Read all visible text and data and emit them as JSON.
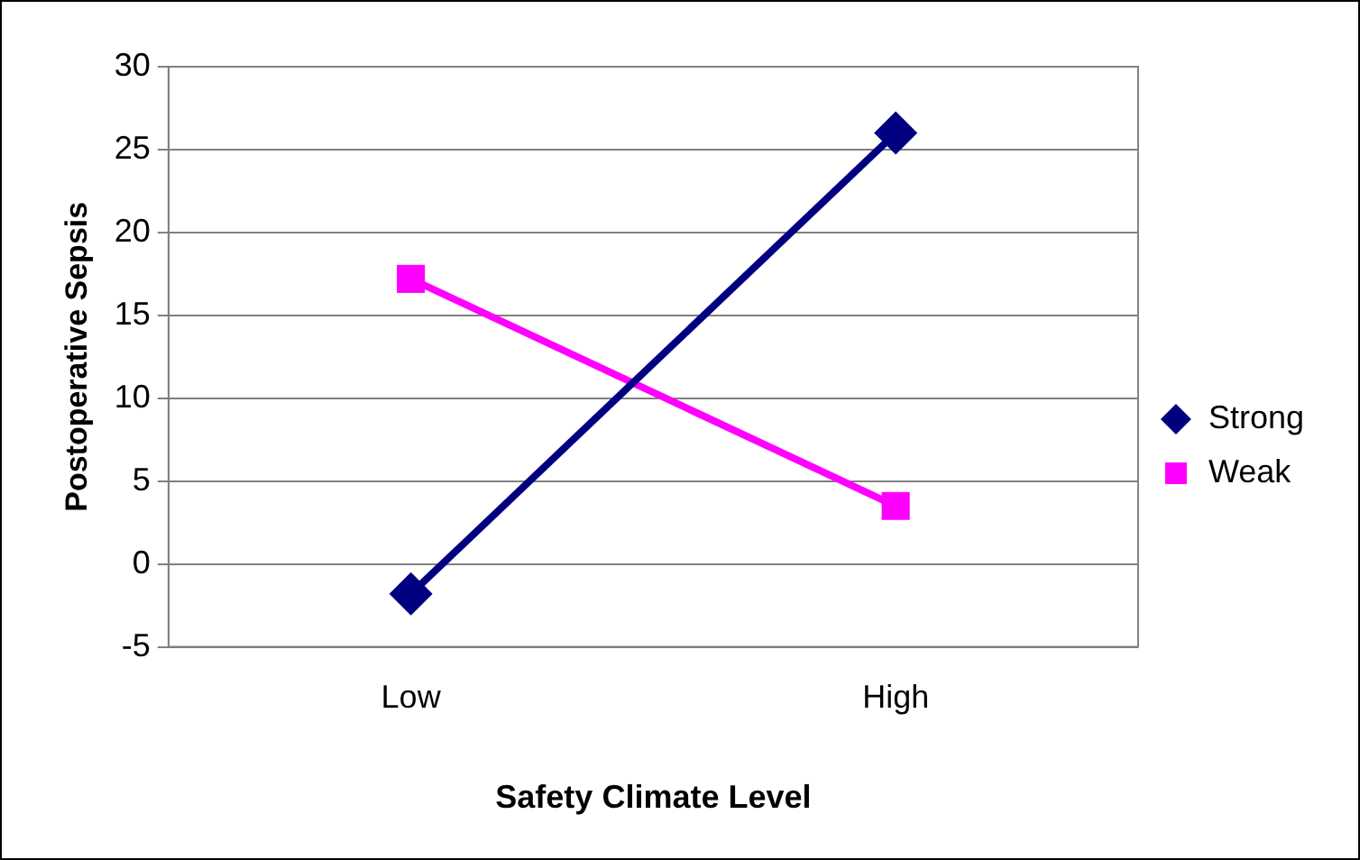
{
  "chart_data": {
    "type": "line",
    "xlabel": "Safety Climate Level",
    "ylabel": "Postoperative Sepsis",
    "categories": [
      "Low",
      "High"
    ],
    "series": [
      {
        "name": "Strong",
        "color": "#000080",
        "values": [
          -1.8,
          26
        ],
        "marker": "diamond"
      },
      {
        "name": "Weak",
        "color": "#ff00ff",
        "values": [
          17.2,
          3.5
        ],
        "marker": "square"
      }
    ],
    "ylim": [
      -5,
      30
    ],
    "yticks": [
      -5,
      0,
      5,
      10,
      15,
      20,
      25,
      30
    ],
    "grid": "y",
    "legend": "right",
    "line_style": "solid"
  }
}
